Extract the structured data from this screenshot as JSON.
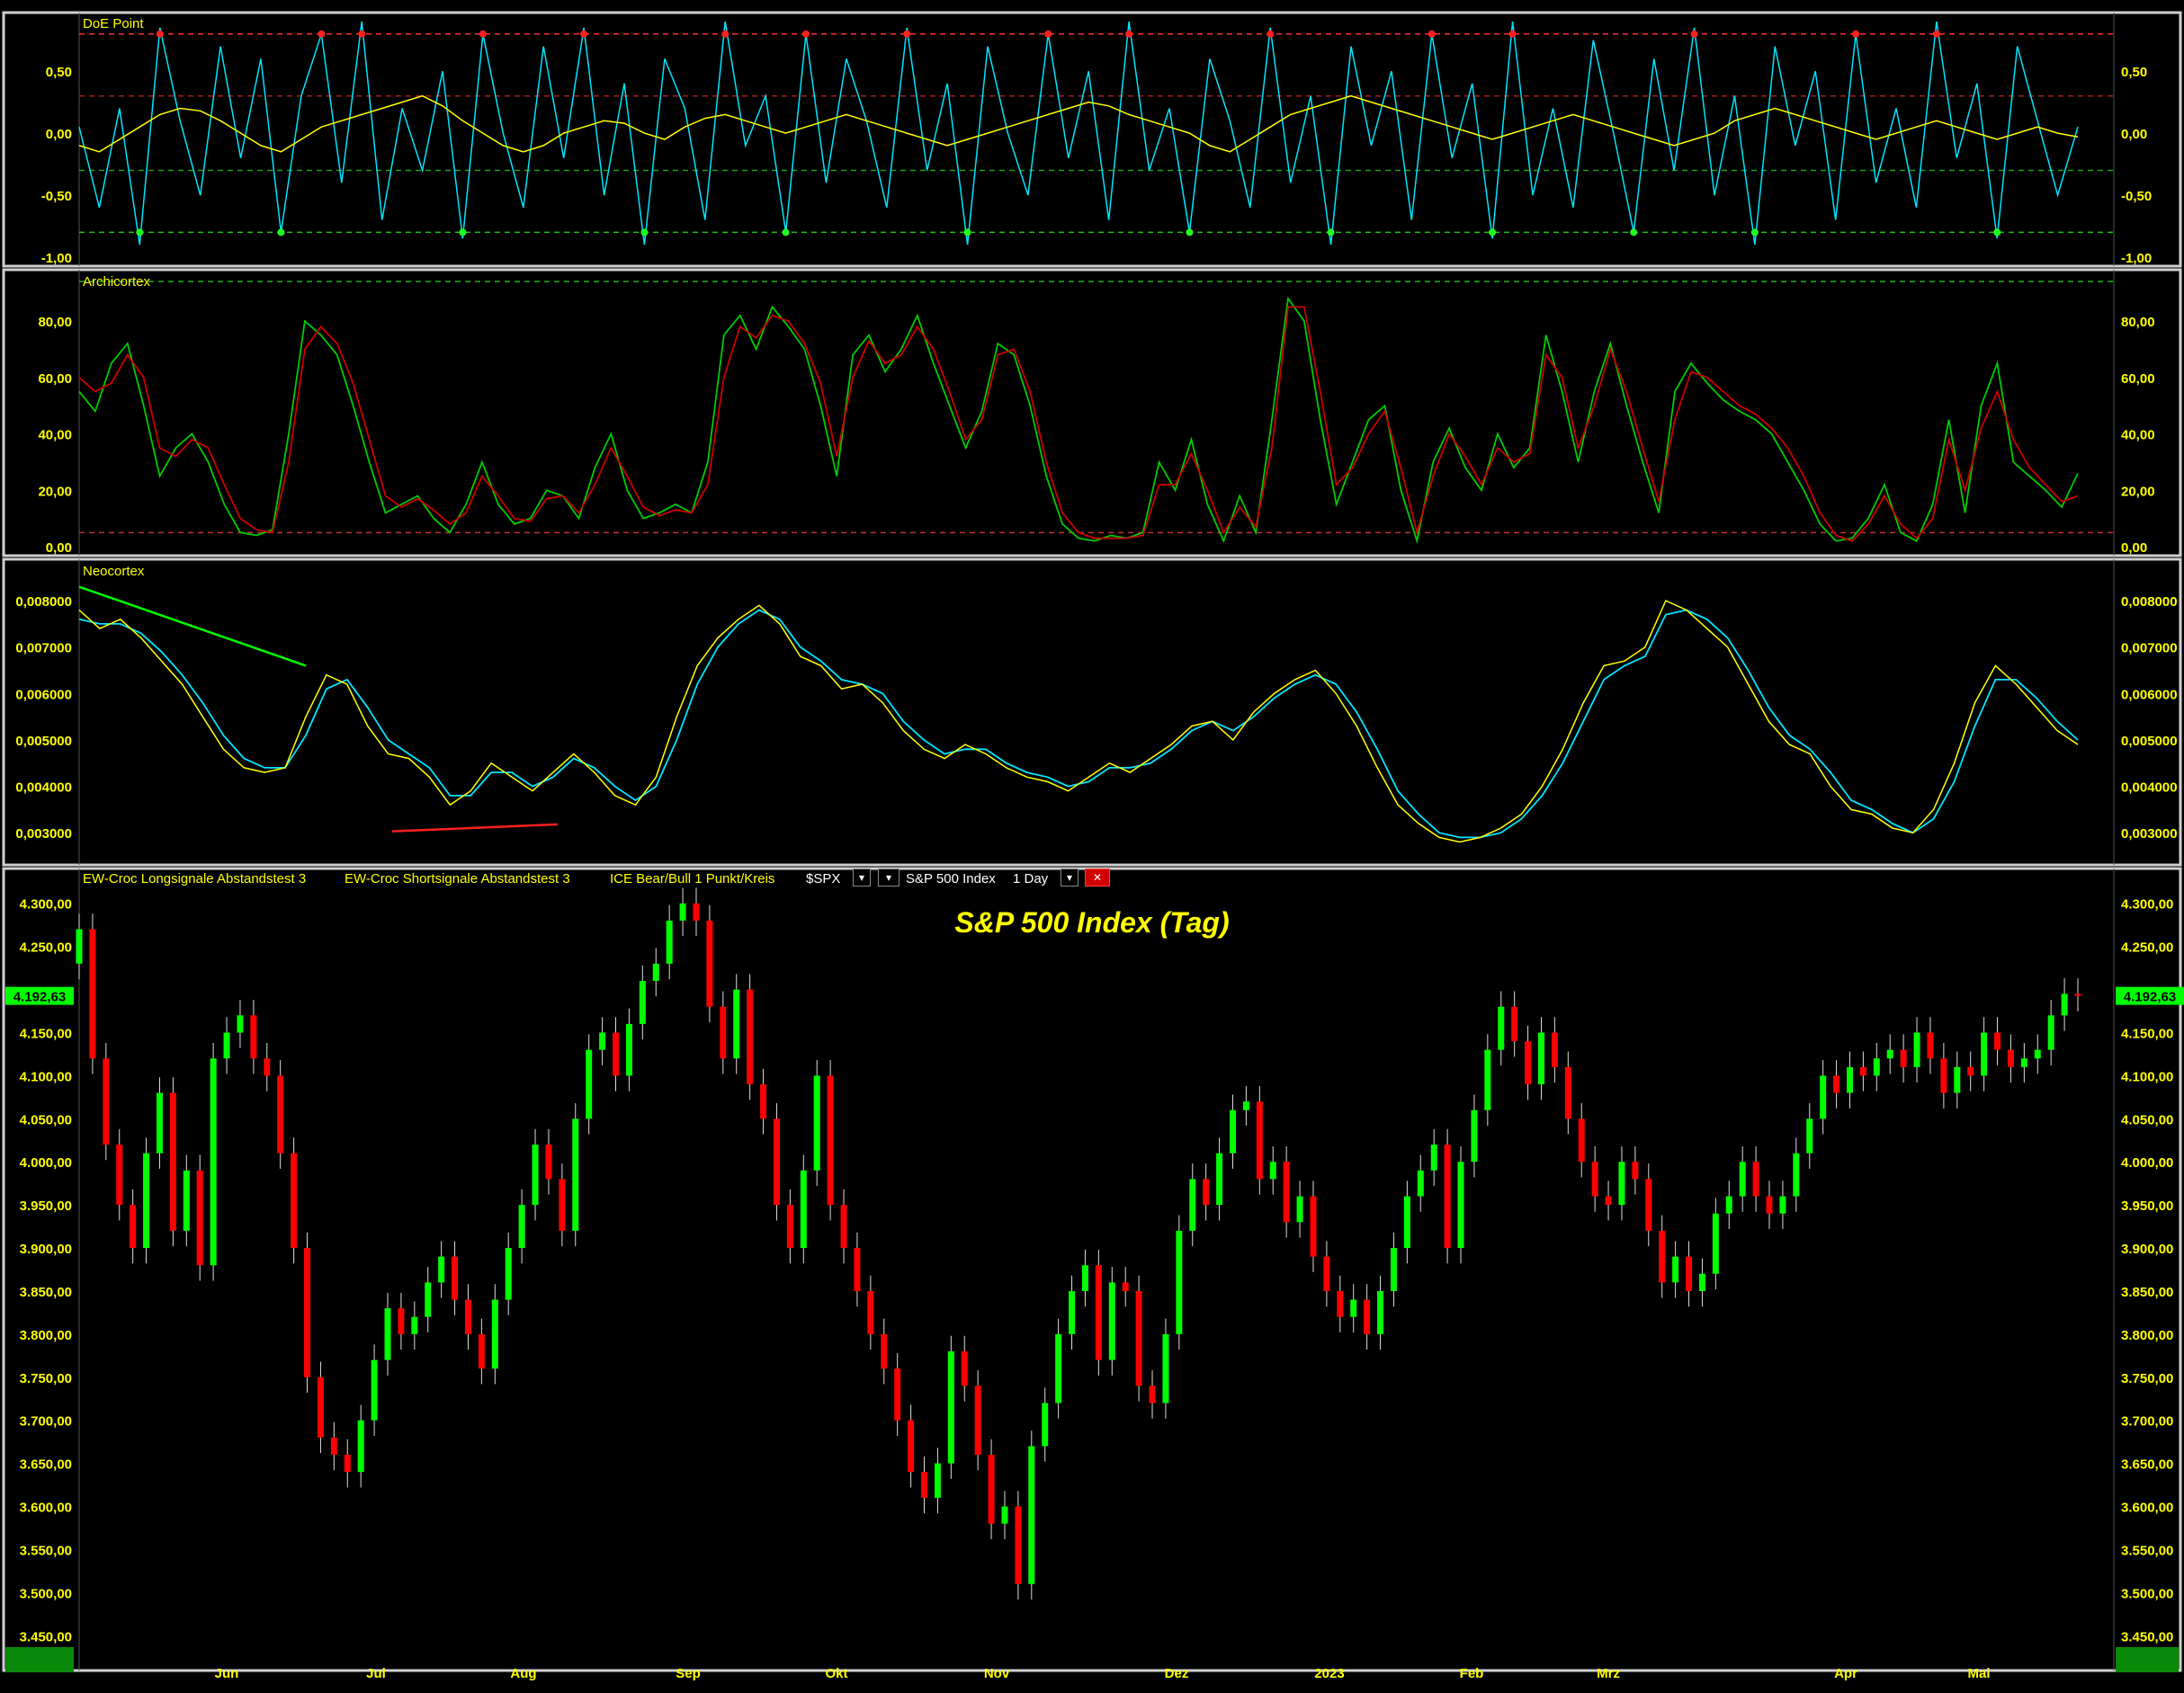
{
  "colors": {
    "background": "#000000",
    "axis_text": "#ffff00",
    "up_candle": "#00ff00",
    "down_candle": "#ff0000",
    "doe_fast": "#00e5ff",
    "doe_slow": "#ffff00",
    "arch_fast": "#00cc00",
    "arch_slow": "#cc0000",
    "neo_fast": "#00e5ff",
    "neo_slow": "#ffff00",
    "price_badge": "#00ff00"
  },
  "panels": {
    "doe": {
      "title": "DoE Point",
      "ticks": [
        "0,50",
        "0,00",
        "-0,50",
        "-1,00"
      ]
    },
    "archicortex": {
      "title": "Archicortex",
      "ticks": [
        "80,00",
        "60,00",
        "40,00",
        "20,00",
        "0,00"
      ]
    },
    "neocortex": {
      "title": "Neocortex",
      "ticks": [
        "0,008000",
        "0,007000",
        "0,006000",
        "0,005000",
        "0,004000",
        "0,003000"
      ]
    },
    "price": {
      "legend": [
        "EW-Croc Longsignale Abstandstest 3",
        "EW-Croc Shortsignale Abstandstest 3",
        "ICE Bear/Bull 1 Punkt/Kreis"
      ],
      "symbol": "$SPX",
      "instrument": "S&P 500 Index",
      "interval": "1 Day",
      "title": "S&P 500 Index (Tag)",
      "last_price": "4.192,63",
      "ticks": [
        "4.300,00",
        "4.250,00",
        "4.150,00",
        "4.100,00",
        "4.050,00",
        "4.000,00",
        "3.950,00",
        "3.900,00",
        "3.850,00",
        "3.800,00",
        "3.750,00",
        "3.700,00",
        "3.650,00",
        "3.600,00",
        "3.550,00",
        "3.500,00",
        "3.450,00"
      ]
    }
  },
  "x_axis": {
    "months": [
      "Jun",
      "Jul",
      "Aug",
      "Sep",
      "Okt",
      "Nov",
      "Dez",
      "2023",
      "Feb",
      "Mrz",
      "Apr",
      "Mai"
    ]
  },
  "chart_data": [
    {
      "type": "line",
      "title": "DoE Point",
      "ylim": [
        -1.0,
        0.9
      ],
      "reference_lines": [
        0.8,
        0.3,
        -0.3,
        -0.8
      ],
      "series": [
        {
          "values": [
            0.05,
            -0.6,
            0.2,
            -0.9,
            0.85,
            0.1,
            -0.5,
            0.7,
            -0.2,
            0.6,
            -0.8,
            0.3,
            0.8,
            -0.4,
            0.9,
            -0.7,
            0.2,
            -0.3,
            0.5,
            -0.85,
            0.8,
            0.0,
            -0.6,
            0.7,
            -0.2,
            0.85,
            -0.5,
            0.4,
            -0.9,
            0.6,
            0.2,
            -0.7,
            0.9,
            -0.1,
            0.3,
            -0.8,
            0.8,
            -0.4,
            0.6,
            0.1,
            -0.6,
            0.85,
            -0.3,
            0.4,
            -0.9,
            0.7,
            0.0,
            -0.5,
            0.8,
            -0.2,
            0.5,
            -0.7,
            0.9,
            -0.3,
            0.2,
            -0.8,
            0.6,
            0.1,
            -0.6,
            0.85,
            -0.4,
            0.3,
            -0.9,
            0.7,
            -0.1,
            0.5,
            -0.7,
            0.8,
            -0.2,
            0.4,
            -0.85,
            0.9,
            -0.5,
            0.2,
            -0.6,
            0.75,
            0.0,
            -0.8,
            0.6,
            -0.3,
            0.85,
            -0.5,
            0.3,
            -0.9,
            0.7,
            -0.1,
            0.5,
            -0.7,
            0.8,
            -0.4,
            0.2,
            -0.6,
            0.9,
            -0.2,
            0.4,
            -0.85,
            0.7,
            0.1,
            -0.5,
            0.05
          ]
        },
        {
          "values": [
            -0.1,
            -0.15,
            -0.05,
            0.05,
            0.15,
            0.2,
            0.18,
            0.1,
            0.0,
            -0.1,
            -0.15,
            -0.05,
            0.05,
            0.1,
            0.15,
            0.2,
            0.25,
            0.3,
            0.22,
            0.1,
            0.0,
            -0.1,
            -0.15,
            -0.1,
            0.0,
            0.05,
            0.1,
            0.08,
            0.0,
            -0.05,
            0.05,
            0.12,
            0.15,
            0.1,
            0.05,
            0.0,
            0.05,
            0.1,
            0.15,
            0.1,
            0.05,
            0.0,
            -0.05,
            -0.1,
            -0.05,
            0.0,
            0.05,
            0.1,
            0.15,
            0.2,
            0.25,
            0.22,
            0.15,
            0.1,
            0.05,
            0.0,
            -0.1,
            -0.15,
            -0.05,
            0.05,
            0.15,
            0.2,
            0.25,
            0.3,
            0.25,
            0.2,
            0.15,
            0.1,
            0.05,
            0.0,
            -0.05,
            0.0,
            0.05,
            0.1,
            0.15,
            0.1,
            0.05,
            0.0,
            -0.05,
            -0.1,
            -0.05,
            0.0,
            0.1,
            0.15,
            0.2,
            0.15,
            0.1,
            0.05,
            0.0,
            -0.05,
            0.0,
            0.05,
            0.1,
            0.05,
            0.0,
            -0.05,
            0.0,
            0.05,
            0.0,
            -0.03
          ]
        }
      ]
    },
    {
      "type": "line",
      "title": "Archicortex",
      "ylim": [
        0,
        95
      ],
      "reference_lines": [
        94,
        5
      ],
      "series": [
        {
          "values": [
            55,
            48,
            65,
            72,
            50,
            25,
            35,
            40,
            30,
            15,
            5,
            4,
            6,
            40,
            80,
            75,
            68,
            50,
            30,
            12,
            15,
            18,
            10,
            5,
            15,
            30,
            15,
            8,
            10,
            20,
            18,
            10,
            28,
            40,
            20,
            10,
            12,
            15,
            12,
            30,
            75,
            82,
            70,
            85,
            78,
            70,
            50,
            25,
            68,
            75,
            62,
            70,
            82,
            65,
            50,
            35,
            48,
            72,
            68,
            50,
            25,
            8,
            3,
            2,
            4,
            3,
            5,
            30,
            20,
            38,
            15,
            2,
            18,
            5,
            45,
            88,
            80,
            45,
            15,
            30,
            45,
            50,
            20,
            2,
            30,
            42,
            28,
            20,
            40,
            28,
            35,
            75,
            55,
            30,
            55,
            72,
            50,
            30,
            12,
            55,
            65,
            58,
            52,
            48,
            45,
            40,
            30,
            20,
            8,
            2,
            3,
            10,
            22,
            5,
            2,
            15,
            45,
            12,
            50,
            65,
            30,
            25,
            20,
            14,
            26
          ]
        },
        {
          "values": [
            60,
            55,
            58,
            68,
            60,
            35,
            32,
            38,
            35,
            22,
            10,
            6,
            5,
            30,
            70,
            78,
            72,
            58,
            38,
            18,
            14,
            17,
            13,
            8,
            12,
            25,
            18,
            10,
            9,
            17,
            18,
            12,
            22,
            35,
            25,
            14,
            11,
            13,
            12,
            22,
            60,
            78,
            74,
            82,
            80,
            72,
            58,
            32,
            60,
            73,
            65,
            68,
            78,
            70,
            55,
            38,
            45,
            68,
            70,
            55,
            30,
            12,
            5,
            3,
            3,
            3,
            4,
            22,
            22,
            33,
            20,
            5,
            14,
            7,
            35,
            85,
            85,
            55,
            22,
            28,
            40,
            48,
            28,
            5,
            25,
            40,
            32,
            22,
            35,
            30,
            33,
            68,
            60,
            35,
            50,
            70,
            55,
            35,
            16,
            45,
            62,
            60,
            55,
            50,
            47,
            42,
            35,
            25,
            12,
            4,
            2,
            8,
            18,
            8,
            3,
            10,
            38,
            20,
            42,
            55,
            38,
            28,
            22,
            16,
            18
          ]
        }
      ]
    },
    {
      "type": "line",
      "title": "Neocortex",
      "ylim": [
        0.0025,
        0.0087
      ],
      "series": [
        {
          "values": [
            0.0078,
            0.0074,
            0.0076,
            0.0072,
            0.0067,
            0.0062,
            0.0055,
            0.0048,
            0.0044,
            0.0043,
            0.0044,
            0.0055,
            0.0064,
            0.0062,
            0.0053,
            0.0047,
            0.0046,
            0.0042,
            0.0036,
            0.0039,
            0.0045,
            0.0042,
            0.0039,
            0.0043,
            0.0047,
            0.0043,
            0.0038,
            0.0036,
            0.0042,
            0.0055,
            0.0066,
            0.0072,
            0.0076,
            0.0079,
            0.0075,
            0.0068,
            0.0066,
            0.0061,
            0.0062,
            0.0058,
            0.0052,
            0.0048,
            0.0046,
            0.0049,
            0.0047,
            0.0044,
            0.0042,
            0.0041,
            0.0039,
            0.0042,
            0.0045,
            0.0043,
            0.0046,
            0.0049,
            0.0053,
            0.0054,
            0.005,
            0.0056,
            0.006,
            0.0063,
            0.0065,
            0.006,
            0.0053,
            0.0044,
            0.0036,
            0.0032,
            0.0029,
            0.0028,
            0.0029,
            0.0031,
            0.0034,
            0.004,
            0.0048,
            0.0058,
            0.0066,
            0.0067,
            0.007,
            0.008,
            0.0078,
            0.0074,
            0.007,
            0.0062,
            0.0054,
            0.0049,
            0.0047,
            0.004,
            0.0035,
            0.0034,
            0.0031,
            0.003,
            0.0035,
            0.0045,
            0.0058,
            0.0066,
            0.0062,
            0.0057,
            0.0052,
            0.0049
          ]
        },
        {
          "values": [
            0.0076,
            0.0075,
            0.0075,
            0.0073,
            0.0069,
            0.0064,
            0.0058,
            0.0051,
            0.0046,
            0.0044,
            0.0044,
            0.0051,
            0.0061,
            0.0063,
            0.0057,
            0.005,
            0.0047,
            0.0044,
            0.0038,
            0.0038,
            0.0043,
            0.0043,
            0.004,
            0.0042,
            0.0046,
            0.0044,
            0.004,
            0.0037,
            0.004,
            0.005,
            0.0062,
            0.007,
            0.0075,
            0.0078,
            0.0076,
            0.007,
            0.0067,
            0.0063,
            0.0062,
            0.006,
            0.0054,
            0.005,
            0.0047,
            0.0048,
            0.0048,
            0.0045,
            0.0043,
            0.0042,
            0.004,
            0.0041,
            0.0044,
            0.0044,
            0.0045,
            0.0048,
            0.0052,
            0.0054,
            0.0052,
            0.0055,
            0.0059,
            0.0062,
            0.0064,
            0.0062,
            0.0056,
            0.0048,
            0.0039,
            0.0034,
            0.003,
            0.0029,
            0.0029,
            0.003,
            0.0033,
            0.0038,
            0.0045,
            0.0054,
            0.0063,
            0.0066,
            0.0068,
            0.0077,
            0.0078,
            0.0076,
            0.0072,
            0.0065,
            0.0057,
            0.0051,
            0.0048,
            0.0043,
            0.0037,
            0.0035,
            0.0032,
            0.003,
            0.0033,
            0.0041,
            0.0053,
            0.0063,
            0.0063,
            0.0059,
            0.0054,
            0.005
          ]
        }
      ]
    },
    {
      "type": "candlestick",
      "title": "S&P 500 Index (Tag)",
      "ylim": [
        3420,
        4330
      ],
      "last_value": 4192.63,
      "series": [
        {
          "name": "close",
          "values": [
            4270,
            4120,
            4020,
            3950,
            3900,
            4010,
            4080,
            3920,
            3990,
            3880,
            4120,
            4150,
            4170,
            4120,
            4100,
            4010,
            3900,
            3750,
            3680,
            3660,
            3640,
            3700,
            3770,
            3830,
            3800,
            3820,
            3860,
            3890,
            3840,
            3800,
            3760,
            3840,
            3900,
            3950,
            4020,
            3980,
            3920,
            4050,
            4130,
            4150,
            4100,
            4160,
            4210,
            4230,
            4280,
            4300,
            4280,
            4180,
            4120,
            4200,
            4090,
            4050,
            3950,
            3900,
            3990,
            4100,
            3950,
            3900,
            3850,
            3800,
            3760,
            3700,
            3640,
            3610,
            3650,
            3780,
            3740,
            3660,
            3580,
            3600,
            3510,
            3670,
            3720,
            3800,
            3850,
            3880,
            3770,
            3860,
            3850,
            3740,
            3720,
            3800,
            3920,
            3980,
            3950,
            4010,
            4060,
            4070,
            3980,
            4000,
            3930,
            3960,
            3890,
            3850,
            3820,
            3840,
            3800,
            3850,
            3900,
            3960,
            3990,
            4020,
            3900,
            4000,
            4060,
            4130,
            4180,
            4140,
            4090,
            4150,
            4110,
            4050,
            4000,
            3960,
            3950,
            4000,
            3980,
            3920,
            3860,
            3890,
            3850,
            3870,
            3940,
            3960,
            4000,
            3960,
            3940,
            3960,
            4010,
            4050,
            4100,
            4080,
            4110,
            4100,
            4120,
            4130,
            4110,
            4150,
            4120,
            4080,
            4110,
            4100,
            4150,
            4130,
            4110,
            4120,
            4130,
            4170,
            4195,
            4192.63
          ]
        }
      ]
    }
  ]
}
